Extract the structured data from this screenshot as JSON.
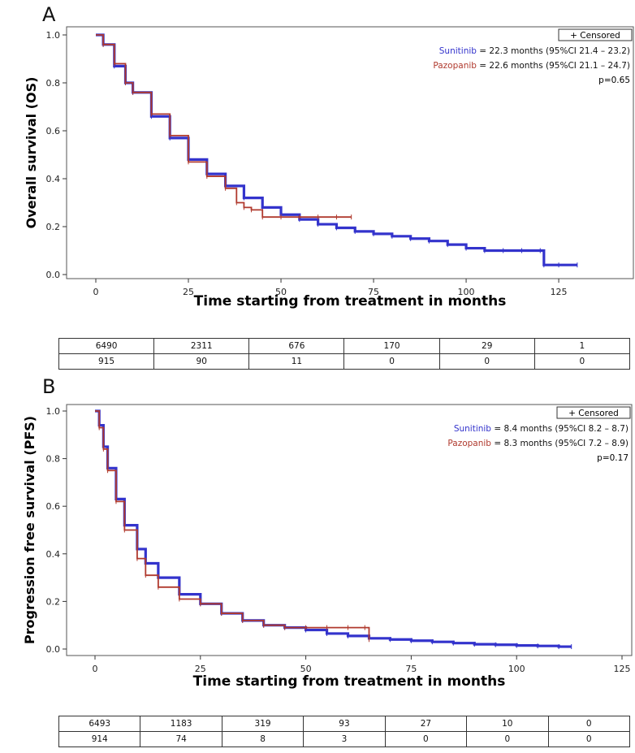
{
  "charts": {
    "A": {
      "panel_label": "A",
      "xlabel": "Time starting from treatment in months",
      "ylabel": "Overall survival (OS)",
      "legend_box": "+ Censored",
      "legend_lines": [
        {
          "name": "Sunitinib",
          "text": " = 22.3 months (95%CI 21.4 – 23.2)"
        },
        {
          "name": "Pazopanib",
          "text": " = 22.6 months (95%CI 21.1 – 24.7)"
        }
      ],
      "pvalue": "p=0.65",
      "risk_table": [
        [
          "6490",
          "2311",
          "676",
          "170",
          "29",
          "1"
        ],
        [
          "915",
          "90",
          "11",
          "0",
          "0",
          "0"
        ]
      ]
    },
    "B": {
      "panel_label": "B",
      "xlabel": "Time starting from treatment in months",
      "ylabel": "Progression free survival (PFS)",
      "legend_box": "+ Censored",
      "legend_lines": [
        {
          "name": "Sunitinib",
          "text": " = 8.4 months (95%CI 8.2 – 8.7)"
        },
        {
          "name": "Pazopanib",
          "text": " = 8.3 months (95%CI 7.2 – 8.9)"
        }
      ],
      "pvalue": "p=0.17",
      "risk_table": [
        [
          "6493",
          "1183",
          "319",
          "93",
          "27",
          "10",
          "0"
        ],
        [
          "914",
          "74",
          "8",
          "3",
          "0",
          "0",
          "0"
        ]
      ]
    }
  },
  "colors": {
    "sunitinib": "#3333cc",
    "pazopanib": "#b03a2e"
  },
  "chart_data": [
    {
      "type": "line",
      "title": "",
      "xlabel": "Time starting from treatment in months",
      "ylabel": "Overall survival (OS)",
      "xlim": [
        0,
        132
      ],
      "ylim": [
        0,
        1.0
      ],
      "xticks": [
        0,
        25,
        50,
        75,
        100,
        125
      ],
      "yticks": [
        0.0,
        0.2,
        0.4,
        0.6,
        0.8,
        1.0
      ],
      "grid": false,
      "legend": "top-right",
      "series": [
        {
          "name": "Sunitinib",
          "x": [
            0,
            2,
            5,
            8,
            10,
            15,
            20,
            25,
            30,
            35,
            40,
            45,
            50,
            55,
            60,
            65,
            70,
            75,
            80,
            85,
            90,
            95,
            100,
            105,
            110,
            115,
            120,
            121,
            125,
            130
          ],
          "y": [
            1.0,
            0.96,
            0.87,
            0.8,
            0.76,
            0.66,
            0.57,
            0.48,
            0.42,
            0.37,
            0.32,
            0.28,
            0.25,
            0.23,
            0.21,
            0.195,
            0.18,
            0.17,
            0.16,
            0.15,
            0.14,
            0.125,
            0.11,
            0.1,
            0.1,
            0.1,
            0.1,
            0.04,
            0.04,
            0.04
          ]
        },
        {
          "name": "Pazopanib",
          "x": [
            0,
            2,
            5,
            8,
            10,
            15,
            20,
            25,
            30,
            35,
            38,
            40,
            42,
            45,
            50,
            55,
            60,
            65,
            69
          ],
          "y": [
            1.0,
            0.96,
            0.88,
            0.8,
            0.76,
            0.67,
            0.58,
            0.47,
            0.41,
            0.36,
            0.3,
            0.28,
            0.27,
            0.24,
            0.24,
            0.24,
            0.24,
            0.24,
            0.24
          ]
        }
      ]
    },
    {
      "type": "line",
      "title": "",
      "xlabel": "Time starting from treatment in months",
      "ylabel": "Progression free survival (PFS)",
      "xlim": [
        0,
        125
      ],
      "ylim": [
        0,
        1.0
      ],
      "xticks": [
        0,
        25,
        50,
        75,
        100,
        125
      ],
      "yticks": [
        0.0,
        0.2,
        0.4,
        0.6,
        0.8,
        1.0
      ],
      "grid": false,
      "legend": "top-right",
      "series": [
        {
          "name": "Sunitinib",
          "x": [
            0,
            1,
            2,
            3,
            5,
            7,
            10,
            12,
            15,
            20,
            25,
            30,
            35,
            40,
            45,
            50,
            55,
            60,
            65,
            70,
            75,
            80,
            85,
            90,
            95,
            100,
            105,
            110,
            113
          ],
          "y": [
            1.0,
            0.94,
            0.85,
            0.76,
            0.63,
            0.52,
            0.42,
            0.36,
            0.3,
            0.23,
            0.19,
            0.15,
            0.12,
            0.1,
            0.09,
            0.08,
            0.065,
            0.055,
            0.045,
            0.04,
            0.035,
            0.03,
            0.025,
            0.02,
            0.018,
            0.015,
            0.013,
            0.01,
            0.01
          ]
        },
        {
          "name": "Pazopanib",
          "x": [
            0,
            1,
            2,
            3,
            5,
            7,
            10,
            12,
            15,
            20,
            25,
            30,
            35,
            40,
            45,
            50,
            55,
            60,
            64,
            65
          ],
          "y": [
            1.0,
            0.93,
            0.84,
            0.75,
            0.62,
            0.5,
            0.38,
            0.31,
            0.26,
            0.21,
            0.19,
            0.15,
            0.12,
            0.1,
            0.09,
            0.09,
            0.09,
            0.09,
            0.09,
            0.04
          ]
        }
      ]
    }
  ]
}
